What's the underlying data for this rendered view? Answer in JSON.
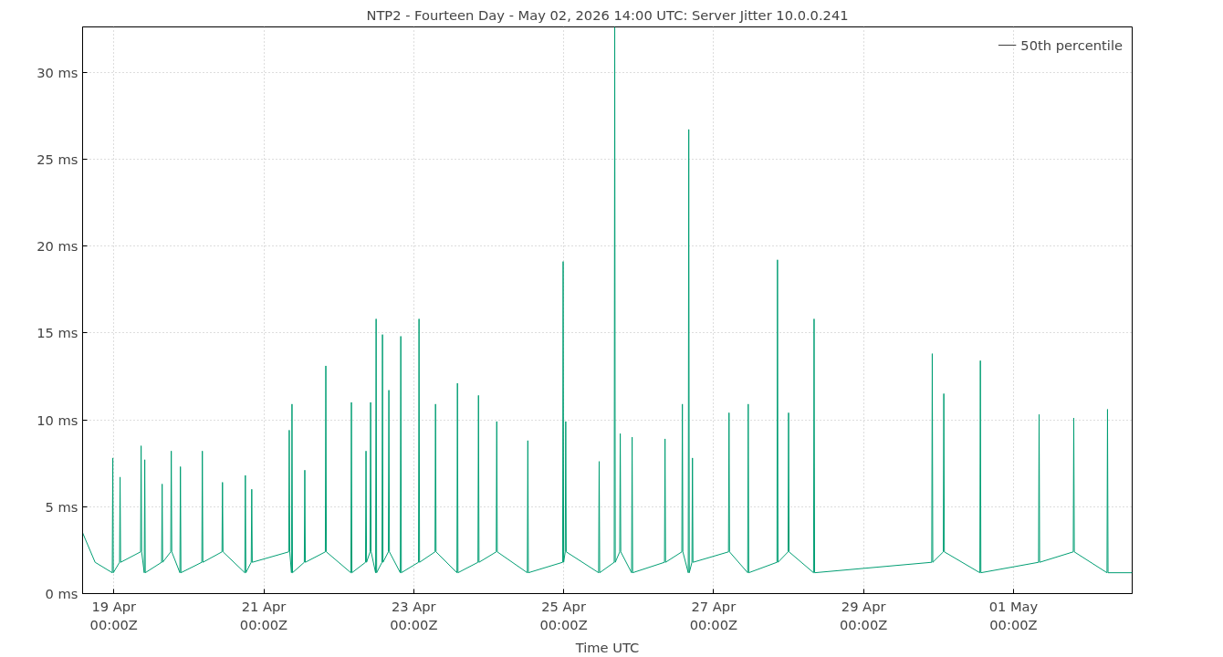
{
  "chart_data": {
    "type": "line",
    "title": "NTP2 - Fourteen Day - May 02, 2026 14:00 UTC: Server Jitter 10.0.0.241",
    "xlabel": "Time UTC",
    "xlim": [
      "2026-04-18T14:00",
      "2026-05-02T14:00"
    ],
    "xticks": [
      {
        "value": "2026-04-19",
        "label": "19 Apr\n00:00Z"
      },
      {
        "value": "2026-04-21",
        "label": "21 Apr\n00:00Z"
      },
      {
        "value": "2026-04-23",
        "label": "23 Apr\n00:00Z"
      },
      {
        "value": "2026-04-25",
        "label": "25 Apr\n00:00Z"
      },
      {
        "value": "2026-04-27",
        "label": "27 Apr\n00:00Z"
      },
      {
        "value": "2026-04-29",
        "label": "29 Apr\n00:00Z"
      },
      {
        "value": "2026-05-01",
        "label": "01 May\n00:00Z"
      }
    ],
    "ylim": [
      0,
      32.6
    ],
    "yticks": [
      {
        "value": 0,
        "label": "0 ms"
      },
      {
        "value": 5,
        "label": "5 ms"
      },
      {
        "value": 10,
        "label": "10 ms"
      },
      {
        "value": 15,
        "label": "15 ms"
      },
      {
        "value": 20,
        "label": "20 ms"
      },
      {
        "value": 25,
        "label": "25 ms"
      },
      {
        "value": 30,
        "label": "30 ms"
      }
    ],
    "grid": true,
    "legend": "top right",
    "marker": "none",
    "line_style": "solid",
    "series": [
      {
        "name": "50th percentile",
        "color": "#404040",
        "values": [
          null,
          null
        ]
      },
      {
        "color": "#009e73",
        "x": [
          "2026-04-18T14:00",
          "2026-04-18T18:00",
          "2026-04-18T23:30",
          "2026-04-18T23:40",
          "2026-04-18T23:50",
          "2026-04-19T01:50",
          "2026-04-19T02:00",
          "2026-04-19T02:10",
          "2026-04-19T08:34",
          "2026-04-19T08:44",
          "2026-04-19T08:54",
          "2026-04-19T09:44",
          "2026-04-19T09:54",
          "2026-04-19T10:04",
          "2026-04-19T15:18",
          "2026-04-19T15:28",
          "2026-04-19T15:38",
          "2026-04-19T18:13",
          "2026-04-19T18:23",
          "2026-04-19T18:33",
          "2026-04-19T21:09",
          "2026-04-19T21:19",
          "2026-04-19T21:29",
          "2026-04-20T04:10",
          "2026-04-20T04:20",
          "2026-04-20T04:30",
          "2026-04-20T10:37",
          "2026-04-20T10:47",
          "2026-04-20T10:57",
          "2026-04-20T17:56",
          "2026-04-20T18:06",
          "2026-04-20T18:16",
          "2026-04-20T19:59",
          "2026-04-20T20:09",
          "2026-04-20T20:19",
          "2026-04-21T07:59",
          "2026-04-21T08:09",
          "2026-04-21T08:19",
          "2026-04-21T08:52",
          "2026-04-21T09:02",
          "2026-04-21T09:12",
          "2026-04-21T12:58",
          "2026-04-21T13:08",
          "2026-04-21T13:18",
          "2026-04-21T19:42",
          "2026-04-21T19:52",
          "2026-04-21T20:02",
          "2026-04-22T03:53",
          "2026-04-22T04:03",
          "2026-04-22T04:13",
          "2026-04-22T08:34",
          "2026-04-22T08:44",
          "2026-04-22T08:54",
          "2026-04-22T10:02",
          "2026-04-22T10:12",
          "2026-04-22T10:22",
          "2026-04-22T11:48",
          "2026-04-22T11:58",
          "2026-04-22T12:08",
          "2026-04-22T13:50",
          "2026-04-22T14:00",
          "2026-04-22T14:10",
          "2026-04-22T15:53",
          "2026-04-22T16:03",
          "2026-04-22T16:13",
          "2026-04-22T19:42",
          "2026-04-22T19:52",
          "2026-04-22T20:02",
          "2026-04-23T01:32",
          "2026-04-23T01:42",
          "2026-04-23T01:52",
          "2026-04-23T06:49",
          "2026-04-23T06:59",
          "2026-04-23T07:09",
          "2026-04-23T13:50",
          "2026-04-23T14:00",
          "2026-04-23T14:10",
          "2026-04-23T20:34",
          "2026-04-23T20:44",
          "2026-04-23T20:54",
          "2026-04-24T02:25",
          "2026-04-24T02:35",
          "2026-04-24T02:45",
          "2026-04-24T12:22",
          "2026-04-24T12:32",
          "2026-04-24T12:42",
          "2026-04-24T23:40",
          "2026-04-24T23:50",
          "2026-04-25T00:00",
          "2026-04-25T00:30",
          "2026-04-25T00:40",
          "2026-04-25T00:50",
          "2026-04-25T11:12",
          "2026-04-25T11:22",
          "2026-04-25T11:32",
          "2026-04-25T16:11",
          "2026-04-25T16:21",
          "2026-04-25T16:31",
          "2026-04-25T17:57",
          "2026-04-25T18:07",
          "2026-04-25T18:17",
          "2026-04-25T21:45",
          "2026-04-25T21:55",
          "2026-04-25T22:05",
          "2026-04-26T08:17",
          "2026-04-26T08:27",
          "2026-04-26T08:37",
          "2026-04-26T13:50",
          "2026-04-26T14:00",
          "2026-04-26T14:10",
          "2026-04-26T15:53",
          "2026-04-26T16:03",
          "2026-04-26T16:13",
          "2026-04-26T17:04",
          "2026-04-26T17:14",
          "2026-04-26T17:24",
          "2026-04-27T04:46",
          "2026-04-27T04:56",
          "2026-04-27T05:06",
          "2026-04-27T10:55",
          "2026-04-27T11:05",
          "2026-04-27T11:15",
          "2026-04-27T20:17",
          "2026-04-27T20:27",
          "2026-04-27T20:37",
          "2026-04-27T23:50",
          "2026-04-28T00:00",
          "2026-04-28T00:10",
          "2026-04-28T08:00",
          "2026-04-28T08:10",
          "2026-04-28T08:20",
          "2026-04-29T21:50",
          "2026-04-29T22:00",
          "2026-04-29T22:10",
          "2026-04-30T01:32",
          "2026-04-30T01:42",
          "2026-04-30T01:52",
          "2026-04-30T13:14",
          "2026-04-30T13:24",
          "2026-04-30T13:34",
          "2026-05-01T08:02",
          "2026-05-01T08:12",
          "2026-05-01T08:22",
          "2026-05-01T19:08",
          "2026-05-01T19:18",
          "2026-05-01T19:28",
          "2026-05-02T05:56",
          "2026-05-02T06:06",
          "2026-05-02T06:16",
          "2026-05-02T14:00"
        ],
        "values": [
          3.5,
          1.8,
          1.2,
          7.8,
          1.2,
          1.8,
          6.7,
          1.8,
          2.4,
          8.5,
          2.4,
          1.2,
          7.7,
          1.2,
          1.8,
          6.3,
          1.8,
          2.4,
          8.2,
          2.4,
          1.2,
          7.3,
          1.2,
          1.8,
          8.2,
          1.8,
          2.4,
          6.4,
          2.4,
          1.2,
          6.8,
          1.2,
          1.8,
          6.0,
          1.8,
          2.4,
          9.4,
          2.4,
          1.2,
          10.9,
          1.2,
          1.8,
          7.1,
          1.8,
          2.4,
          13.1,
          2.4,
          1.2,
          11.0,
          1.2,
          1.8,
          8.2,
          1.8,
          2.4,
          11.0,
          2.4,
          1.2,
          15.8,
          1.2,
          1.8,
          14.9,
          1.8,
          2.4,
          11.7,
          2.4,
          1.2,
          14.8,
          1.2,
          1.8,
          15.8,
          1.8,
          2.4,
          10.9,
          2.4,
          1.2,
          12.1,
          1.2,
          1.8,
          11.4,
          1.8,
          2.4,
          9.9,
          2.4,
          1.2,
          8.8,
          1.2,
          1.8,
          19.1,
          1.8,
          2.4,
          9.9,
          2.4,
          1.2,
          7.6,
          1.2,
          1.8,
          32.6,
          1.8,
          2.4,
          9.2,
          2.4,
          1.2,
          9.0,
          1.2,
          1.8,
          8.9,
          1.8,
          2.4,
          10.9,
          2.4,
          1.2,
          26.7,
          1.2,
          1.8,
          7.8,
          1.8,
          2.4,
          10.4,
          2.4,
          1.2,
          10.9,
          1.2,
          1.8,
          19.2,
          1.8,
          2.4,
          10.4,
          2.4,
          1.2,
          15.8,
          1.2,
          1.8,
          13.8,
          1.8,
          2.4,
          11.5,
          2.4,
          1.2,
          13.4,
          1.2,
          1.8,
          10.3,
          1.8,
          2.4,
          10.1,
          2.4,
          1.2,
          10.6,
          1.2,
          1.2
        ]
      }
    ]
  }
}
